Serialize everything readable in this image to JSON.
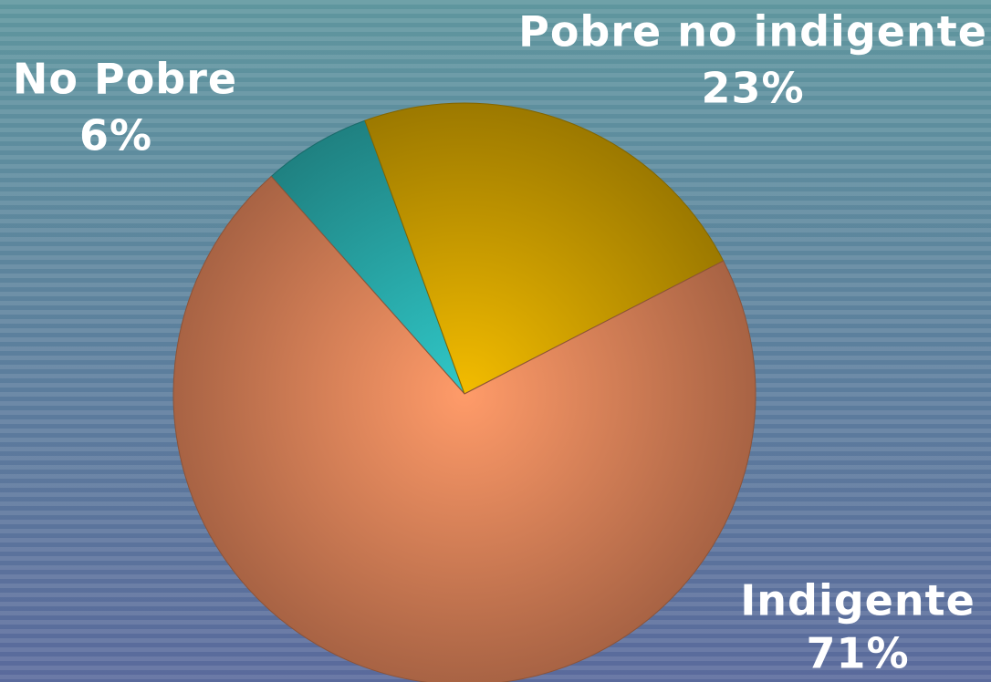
{
  "chart_data": {
    "type": "pie",
    "categories": [
      "No Pobre",
      "Pobre no indigente",
      "Indigente"
    ],
    "values": [
      6,
      23,
      71
    ],
    "value_labels": [
      "6%",
      "23%",
      "71%"
    ],
    "colors": [
      "#2bb3b3",
      "#d9a800",
      "#e98a5e"
    ]
  }
}
